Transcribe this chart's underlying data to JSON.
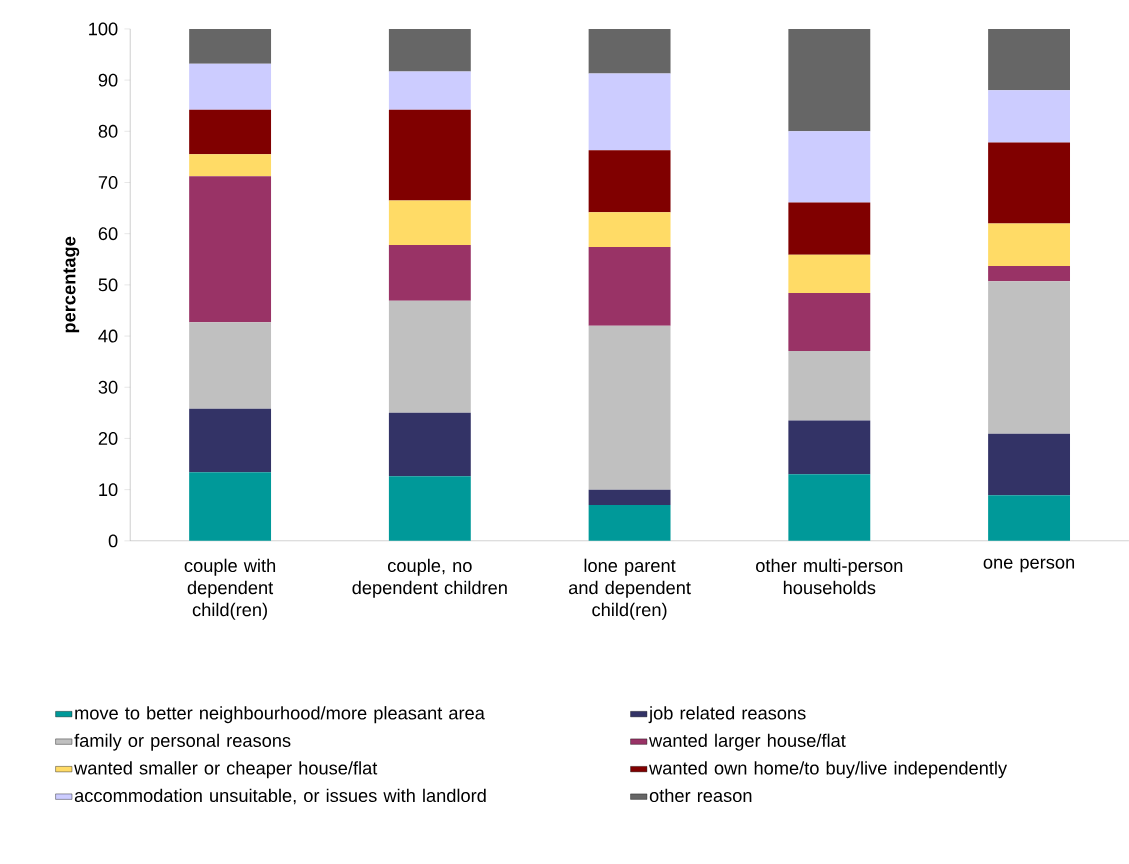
{
  "chart_data": {
    "type": "bar",
    "stacked": true,
    "ylabel": "percentage",
    "legend": "bottom",
    "categories": [
      "couple with dependent child(ren)",
      "couple, no dependent children",
      "lone parent and dependent child(ren)",
      "other multi-person households",
      "one person"
    ],
    "ylim": [
      0,
      100
    ],
    "yticks": [
      0,
      10,
      20,
      30,
      40,
      50,
      60,
      70,
      80,
      90,
      100
    ],
    "series": [
      {
        "name": "move to better neighbourhood/more pleasant area",
        "color": "#009999",
        "values": [
          13.4,
          12.6,
          7.0,
          13.0,
          8.9
        ]
      },
      {
        "name": "job related reasons",
        "color": "#333366",
        "values": [
          12.4,
          12.4,
          3.0,
          10.5,
          12.0
        ]
      },
      {
        "name": "family or personal reasons",
        "color": "#c0c0c0",
        "values": [
          16.9,
          21.9,
          32.0,
          13.6,
          29.8
        ]
      },
      {
        "name": "wanted larger house/flat",
        "color": "#993366",
        "values": [
          28.5,
          10.9,
          15.4,
          11.3,
          3.0
        ]
      },
      {
        "name": "wanted smaller or cheaper house/flat",
        "color": "#ffdb66",
        "values": [
          4.3,
          8.7,
          6.8,
          7.5,
          8.3
        ]
      },
      {
        "name": "wanted own home/to buy/live independently",
        "color": "#800000",
        "values": [
          8.7,
          17.7,
          12.1,
          10.2,
          15.8
        ]
      },
      {
        "name": "accommodation unsuitable, or issues with landlord",
        "color": "#ccccff",
        "values": [
          9.0,
          7.5,
          15.0,
          13.9,
          10.2
        ]
      },
      {
        "name": "other reason",
        "color": "#666666",
        "values": [
          6.8,
          8.3,
          8.7,
          20.0,
          12.0
        ]
      }
    ]
  }
}
